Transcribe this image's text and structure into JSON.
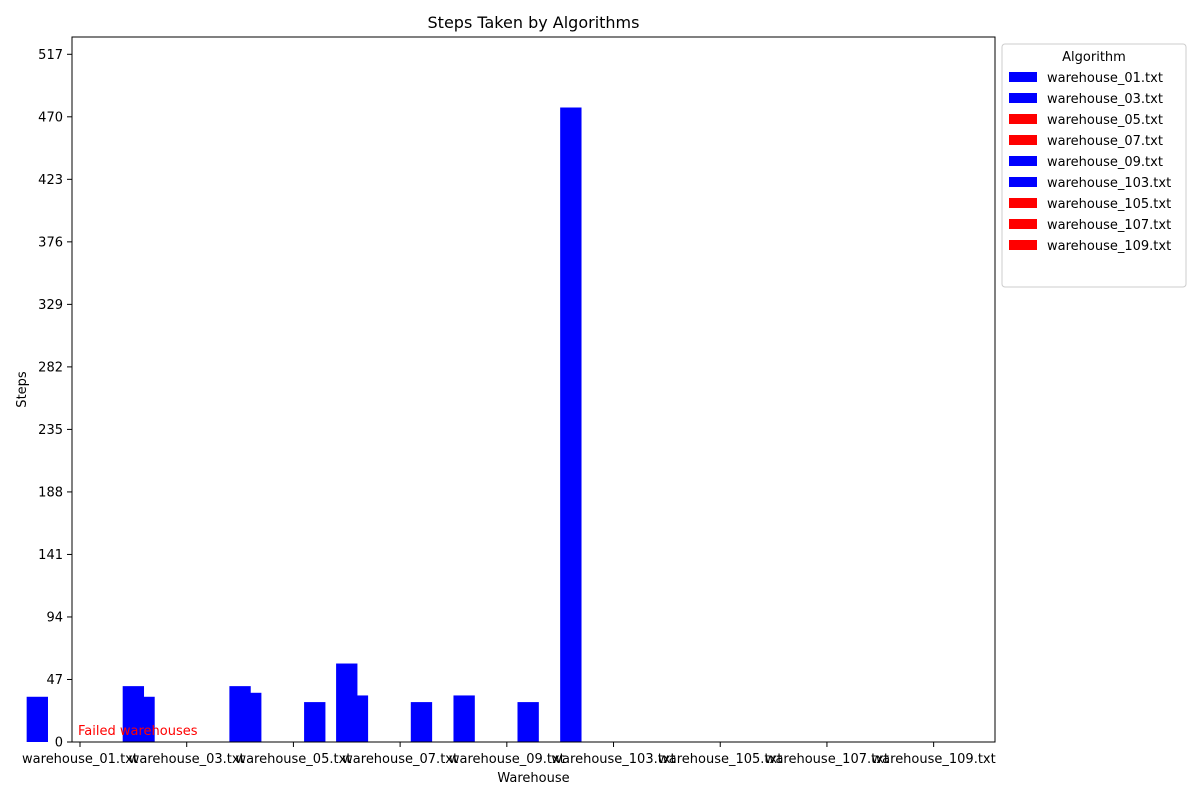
{
  "chart_data": {
    "type": "bar",
    "title": "Steps Taken by Algorithms",
    "xlabel": "Warehouse",
    "ylabel": "Steps",
    "ylim": [
      0,
      530
    ],
    "yticks": [
      0,
      47,
      94,
      141,
      188,
      235,
      282,
      329,
      376,
      423,
      470,
      517
    ],
    "categories": [
      "warehouse_01.txt",
      "warehouse_03.txt",
      "warehouse_05.txt",
      "warehouse_07.txt",
      "warehouse_09.txt",
      "warehouse_103.txt",
      "warehouse_105.txt",
      "warehouse_107.txt",
      "warehouse_109.txt"
    ],
    "bars": [
      {
        "group": 0,
        "slot": 0,
        "value": 34,
        "color": "#0000ff"
      },
      {
        "group": 0,
        "slot": 3,
        "value": 42,
        "color": "#0000ff"
      },
      {
        "group": 1,
        "slot": 0,
        "value": 34,
        "color": "#0000ff"
      },
      {
        "group": 1,
        "slot": 3,
        "value": 42,
        "color": "#0000ff"
      },
      {
        "group": 2,
        "slot": 0,
        "value": 37,
        "color": "#0000ff"
      },
      {
        "group": 2,
        "slot": 2,
        "value": 30,
        "color": "#0000ff"
      },
      {
        "group": 2,
        "slot": 3,
        "value": 59,
        "color": "#0000ff"
      },
      {
        "group": 3,
        "slot": 0,
        "value": 35,
        "color": "#0000ff"
      },
      {
        "group": 3,
        "slot": 2,
        "value": 30,
        "color": "#0000ff"
      },
      {
        "group": 4,
        "slot": 0,
        "value": 35,
        "color": "#0000ff"
      },
      {
        "group": 4,
        "slot": 2,
        "value": 30,
        "color": "#0000ff"
      },
      {
        "group": 5,
        "slot": 0,
        "value": 477,
        "color": "#0000ff"
      }
    ],
    "legend": {
      "title": "Algorithm",
      "placement": "outside-right-top",
      "entries": [
        {
          "label": "warehouse_01.txt",
          "color": "#0000ff"
        },
        {
          "label": "warehouse_03.txt",
          "color": "#0000ff"
        },
        {
          "label": "warehouse_05.txt",
          "color": "#ff0000"
        },
        {
          "label": "warehouse_07.txt",
          "color": "#ff0000"
        },
        {
          "label": "warehouse_09.txt",
          "color": "#0000ff"
        },
        {
          "label": "warehouse_103.txt",
          "color": "#0000ff"
        },
        {
          "label": "warehouse_105.txt",
          "color": "#ff0000"
        },
        {
          "label": "warehouse_107.txt",
          "color": "#ff0000"
        },
        {
          "label": "warehouse_109.txt",
          "color": "#ff0000"
        }
      ]
    },
    "annotation": {
      "text": "Failed warehouses",
      "color": "#ff0000"
    },
    "grid": false
  }
}
